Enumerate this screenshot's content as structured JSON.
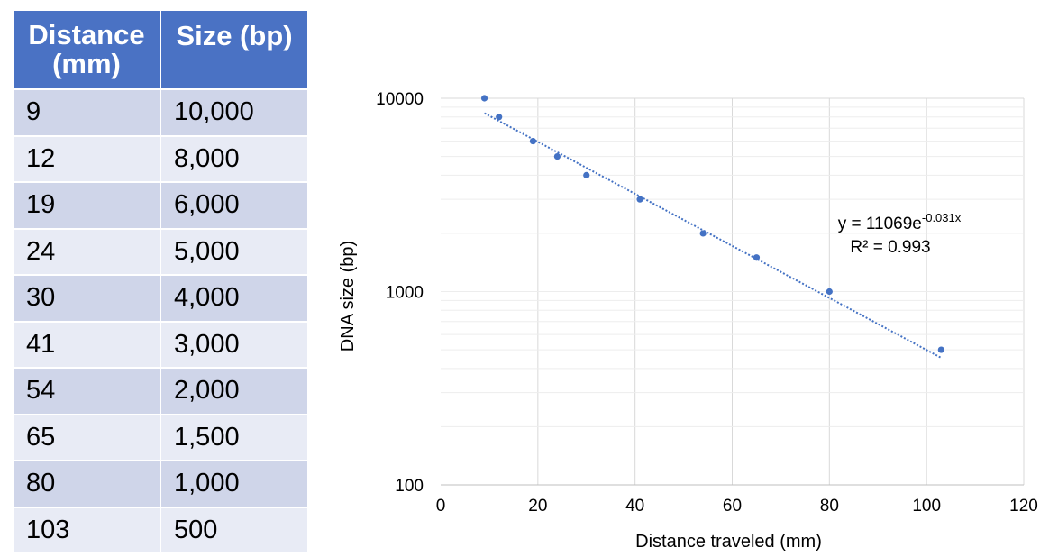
{
  "table": {
    "headers": [
      "Distance (mm)",
      "Size (bp)"
    ],
    "rows": [
      [
        "9",
        "10,000"
      ],
      [
        "12",
        "8,000"
      ],
      [
        "19",
        "6,000"
      ],
      [
        "24",
        "5,000"
      ],
      [
        "30",
        "4,000"
      ],
      [
        "41",
        "3,000"
      ],
      [
        "54",
        "2,000"
      ],
      [
        "65",
        "1,500"
      ],
      [
        "80",
        "1,000"
      ],
      [
        "103",
        "500"
      ]
    ]
  },
  "chart_data": {
    "type": "scatter",
    "title": "",
    "xlabel": "Distance traveled (mm)",
    "ylabel": "DNA size (bp)",
    "xlim": [
      0,
      120
    ],
    "ylim": [
      100,
      10000
    ],
    "yscale": "log",
    "grid": true,
    "x_ticks": [
      0,
      20,
      40,
      60,
      80,
      100,
      120
    ],
    "y_ticks": [
      100,
      1000,
      10000
    ],
    "x": [
      9,
      12,
      19,
      24,
      30,
      41,
      54,
      65,
      80,
      103
    ],
    "y": [
      10000,
      8000,
      6000,
      5000,
      4000,
      3000,
      2000,
      1500,
      1000,
      500
    ],
    "color": "#4472c4",
    "trendline": {
      "type": "exponential",
      "a": 11069,
      "b": -0.031,
      "equation_prefix": "y = 11069e",
      "equation_exponent": "-0.031x",
      "r_squared_label": "R² = 0.993"
    }
  }
}
